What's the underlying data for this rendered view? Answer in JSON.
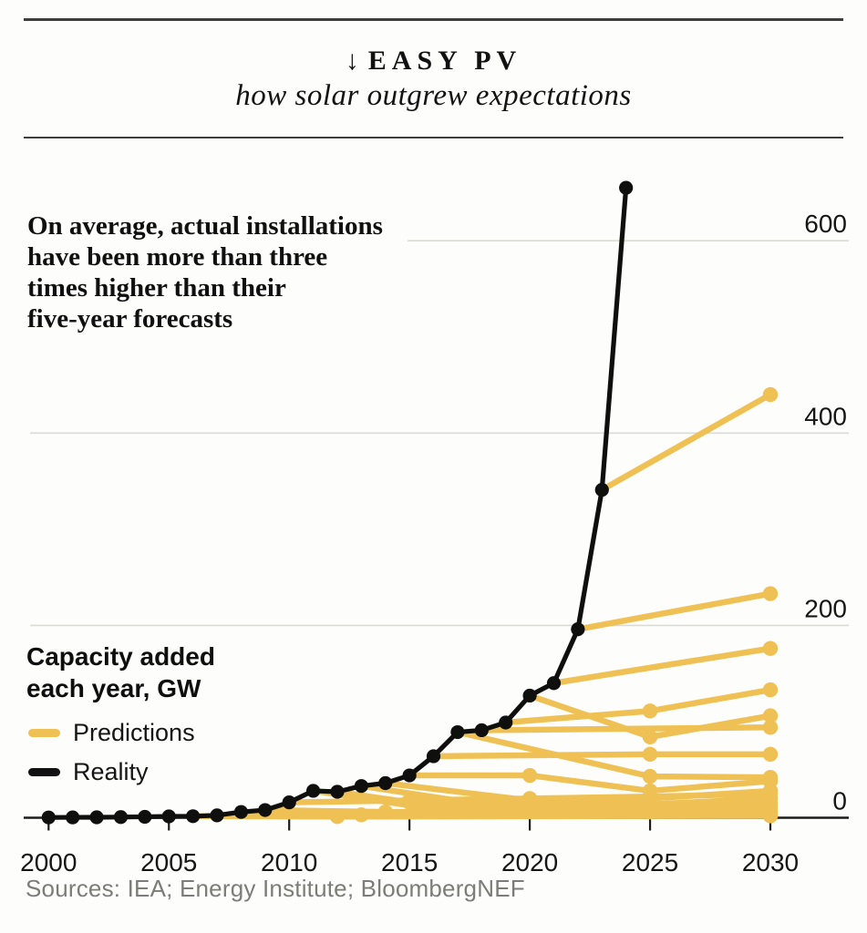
{
  "header": {
    "arrow": "↓",
    "title": "EASY PV",
    "subtitle": "how solar outgrew expectations"
  },
  "annotation": "On average, actual installations\nhave been more than three\ntimes higher than their\nfive-year forecasts",
  "axis_title": "Capacity added\neach year, GW",
  "legend": {
    "items": [
      {
        "label": "Predictions",
        "color": "#EFC154"
      },
      {
        "label": "Reality",
        "color": "#111111"
      }
    ]
  },
  "source": "Sources: IEA; Energy Institute; BloombergNEF",
  "colors": {
    "background": "#fdfdfb",
    "prediction": "#EFC154",
    "reality": "#0f0f0e",
    "gridline": "#dbdbd6",
    "axis": "#1c1c1a",
    "rule": "#3e3e3c",
    "label": "#161616",
    "muted": "#7c7c78"
  },
  "chart_data": {
    "type": "line",
    "title": "Capacity added each year, GW",
    "xlabel": "",
    "ylabel": "Capacity added each year, GW",
    "unit": "GW",
    "grid": "horizontal",
    "legend_position": "left-middle",
    "xlim": [
      2000,
      2030
    ],
    "ylim": [
      0,
      660
    ],
    "x_axis": {
      "ticks": [
        2000,
        2005,
        2010,
        2015,
        2020,
        2025,
        2030
      ]
    },
    "y_axis": {
      "ticks": [
        0,
        200,
        400,
        600
      ]
    },
    "series": {
      "reality": {
        "name": "Reality",
        "points": [
          [
            2000,
            0.3
          ],
          [
            2001,
            0.4
          ],
          [
            2002,
            0.5
          ],
          [
            2003,
            0.7
          ],
          [
            2004,
            1.0
          ],
          [
            2005,
            1.4
          ],
          [
            2006,
            1.6
          ],
          [
            2007,
            2.5
          ],
          [
            2008,
            6
          ],
          [
            2009,
            8
          ],
          [
            2010,
            16
          ],
          [
            2011,
            28
          ],
          [
            2012,
            27
          ],
          [
            2013,
            33
          ],
          [
            2014,
            36
          ],
          [
            2015,
            44
          ],
          [
            2016,
            64
          ],
          [
            2017,
            89
          ],
          [
            2018,
            91
          ],
          [
            2019,
            99
          ],
          [
            2020,
            127
          ],
          [
            2021,
            140
          ],
          [
            2022,
            196
          ],
          [
            2023,
            341
          ],
          [
            2024,
            655
          ]
        ]
      },
      "predictions": {
        "name": "Predictions",
        "lines": [
          {
            "made": 2023,
            "points": [
              [
                2023,
                341
              ],
              [
                2030,
                440
              ]
            ]
          },
          {
            "made": 2022,
            "points": [
              [
                2022,
                196
              ],
              [
                2030,
                233
              ]
            ]
          },
          {
            "made": 2021,
            "points": [
              [
                2021,
                140
              ],
              [
                2030,
                176
              ]
            ]
          },
          {
            "made": 2020,
            "points": [
              [
                2020,
                127
              ],
              [
                2025,
                84
              ],
              [
                2030,
                106
              ]
            ]
          },
          {
            "made": 2019,
            "points": [
              [
                2019,
                99
              ],
              [
                2025,
                111
              ],
              [
                2030,
                133
              ]
            ]
          },
          {
            "made": 2018,
            "points": [
              [
                2018,
                91
              ],
              [
                2030,
                94
              ]
            ]
          },
          {
            "made": 2017,
            "points": [
              [
                2017,
                89
              ],
              [
                2025,
                43
              ],
              [
                2030,
                42
              ]
            ]
          },
          {
            "made": 2016,
            "points": [
              [
                2016,
                64
              ],
              [
                2025,
                66
              ],
              [
                2030,
                66
              ]
            ]
          },
          {
            "made": 2015,
            "points": [
              [
                2015,
                44
              ],
              [
                2020,
                44
              ],
              [
                2025,
                28
              ],
              [
                2030,
                38
              ]
            ]
          },
          {
            "made": 2014,
            "points": [
              [
                2014,
                36
              ],
              [
                2020,
                18
              ],
              [
                2025,
                20
              ],
              [
                2030,
                28
              ]
            ]
          },
          {
            "made": 2013,
            "points": [
              [
                2013,
                33
              ],
              [
                2018,
                14
              ],
              [
                2025,
                14
              ],
              [
                2030,
                20
              ]
            ]
          },
          {
            "made": 2012,
            "points": [
              [
                2012,
                27
              ],
              [
                2015,
                16
              ],
              [
                2020,
                12
              ],
              [
                2025,
                12
              ],
              [
                2030,
                15
              ]
            ]
          },
          {
            "made": 2011,
            "points": [
              [
                2011,
                28
              ],
              [
                2016,
                9
              ],
              [
                2025,
                9
              ],
              [
                2030,
                11
              ]
            ]
          },
          {
            "made": 2010,
            "points": [
              [
                2010,
                16
              ],
              [
                2015,
                18
              ],
              [
                2020,
                20
              ],
              [
                2025,
                22
              ],
              [
                2030,
                25
              ]
            ]
          },
          {
            "made": 2009,
            "points": [
              [
                2009,
                8
              ],
              [
                2014,
                6
              ],
              [
                2025,
                6
              ],
              [
                2030,
                7
              ]
            ]
          },
          {
            "made": 2008,
            "points": [
              [
                2008,
                6
              ],
              [
                2013,
                3
              ],
              [
                2030,
                4
              ]
            ]
          },
          {
            "made": 2006,
            "points": [
              [
                2006,
                1.6
              ],
              [
                2012,
                1.2
              ],
              [
                2030,
                2
              ]
            ]
          }
        ]
      }
    }
  }
}
